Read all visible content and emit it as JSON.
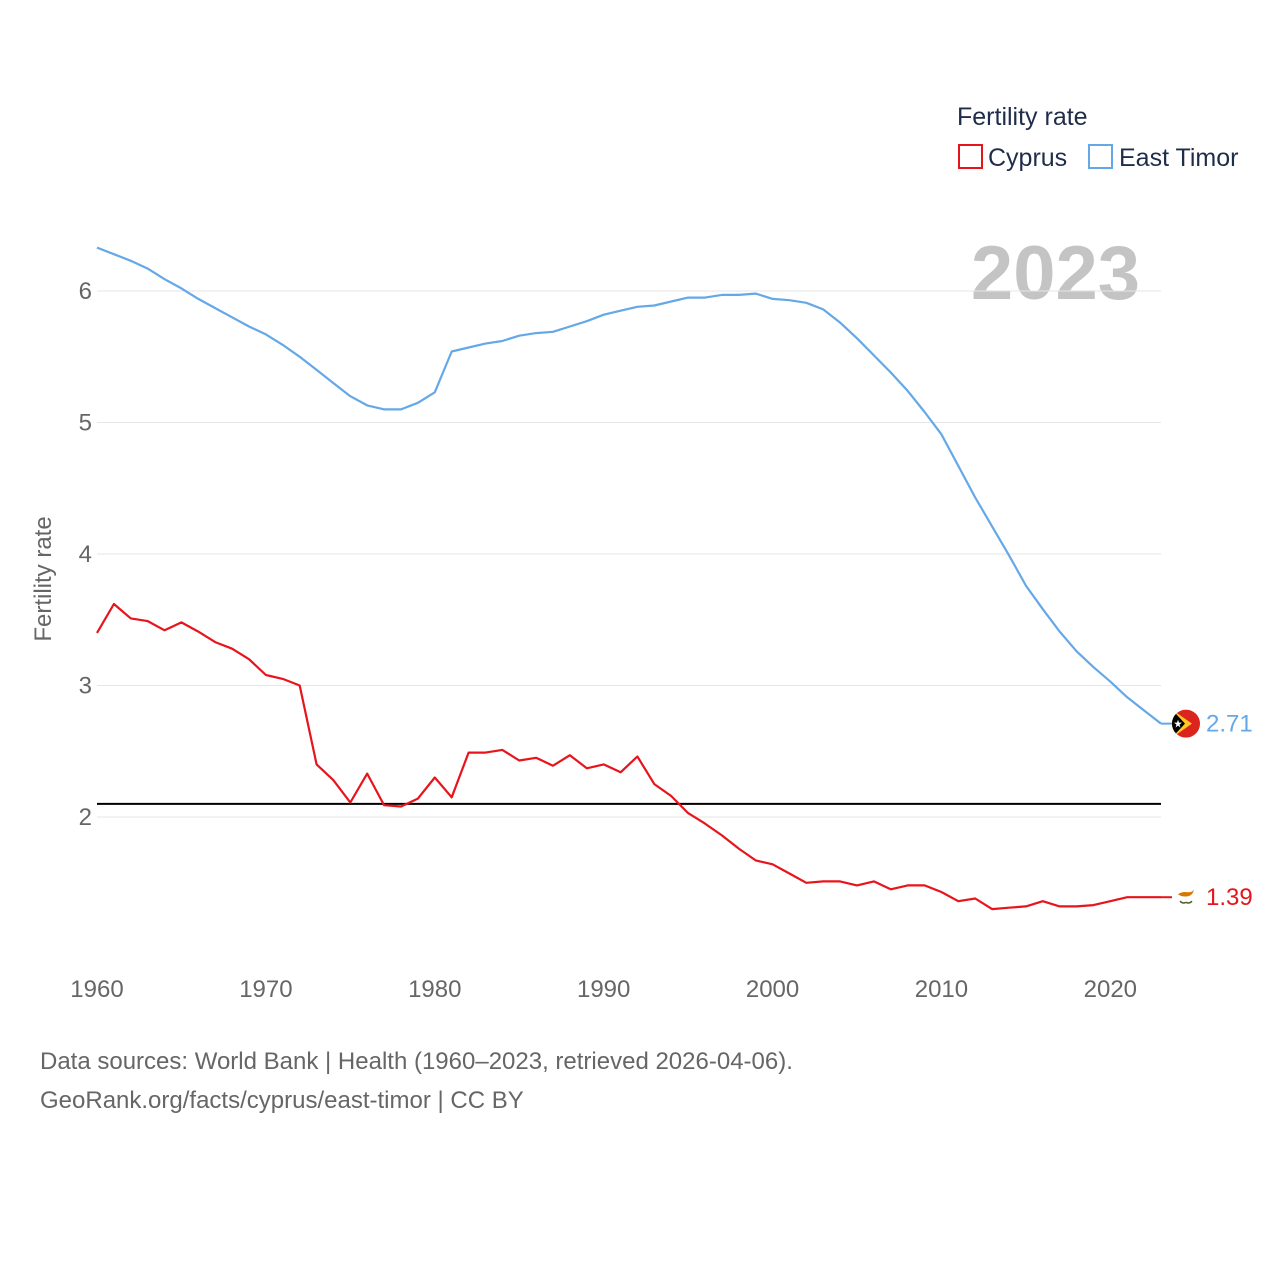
{
  "legend": {
    "title": "Fertility rate",
    "items": [
      {
        "label": "Cyprus",
        "color": "#e8141c"
      },
      {
        "label": "East Timor",
        "color": "#64a8e8"
      }
    ]
  },
  "year_label": "2023",
  "source": {
    "line1": "Data sources: World Bank | Health (1960–2023, retrieved 2026-04-06).",
    "line2": "GeoRank.org/facts/cyprus/east-timor | CC BY"
  },
  "colors": {
    "cyprus": "#e8141c",
    "east_timor": "#64a8e8",
    "grid": "#e6e6e6",
    "reference": "#000000"
  },
  "chart_data": {
    "type": "line",
    "title": "",
    "xlabel": "",
    "ylabel": "Fertility rate",
    "xlim": [
      1960,
      2023
    ],
    "ylim": [
      1.0,
      6.5
    ],
    "grid": true,
    "legend_position": "top-right",
    "x_ticks": [
      1960,
      1970,
      1980,
      1990,
      2000,
      2010,
      2020
    ],
    "x_tick_labels": [
      "1960",
      "1970",
      "1980",
      "1990",
      "2000",
      "2010",
      "2020"
    ],
    "y_ticks": [
      2,
      3,
      4,
      5,
      6
    ],
    "y_tick_labels": [
      "2",
      "3",
      "4",
      "5",
      "6"
    ],
    "reference_line": {
      "y": 2.1
    },
    "x": [
      1960,
      1961,
      1962,
      1963,
      1964,
      1965,
      1966,
      1967,
      1968,
      1969,
      1970,
      1971,
      1972,
      1973,
      1974,
      1975,
      1976,
      1977,
      1978,
      1979,
      1980,
      1981,
      1982,
      1983,
      1984,
      1985,
      1986,
      1987,
      1988,
      1989,
      1990,
      1991,
      1992,
      1993,
      1994,
      1995,
      1996,
      1997,
      1998,
      1999,
      2000,
      2001,
      2002,
      2003,
      2004,
      2005,
      2006,
      2007,
      2008,
      2009,
      2010,
      2011,
      2012,
      2013,
      2014,
      2015,
      2016,
      2017,
      2018,
      2019,
      2020,
      2021,
      2022,
      2023
    ],
    "series": [
      {
        "name": "Cyprus",
        "end_label": "1.39",
        "values": [
          3.4,
          3.62,
          3.51,
          3.49,
          3.42,
          3.48,
          3.41,
          3.33,
          3.28,
          3.2,
          3.08,
          3.05,
          3.0,
          2.4,
          2.28,
          2.11,
          2.33,
          2.09,
          2.08,
          2.14,
          2.3,
          2.15,
          2.49,
          2.49,
          2.51,
          2.43,
          2.45,
          2.39,
          2.47,
          2.37,
          2.4,
          2.34,
          2.46,
          2.25,
          2.16,
          2.03,
          1.95,
          1.86,
          1.76,
          1.67,
          1.64,
          1.57,
          1.5,
          1.51,
          1.51,
          1.48,
          1.51,
          1.45,
          1.48,
          1.48,
          1.43,
          1.36,
          1.38,
          1.3,
          1.31,
          1.32,
          1.36,
          1.32,
          1.32,
          1.33,
          1.36,
          1.39,
          1.39,
          1.39
        ]
      },
      {
        "name": "East Timor",
        "end_label": "2.71",
        "values": [
          6.33,
          6.28,
          6.23,
          6.17,
          6.09,
          6.02,
          5.94,
          5.87,
          5.8,
          5.73,
          5.67,
          5.59,
          5.5,
          5.4,
          5.3,
          5.2,
          5.13,
          5.1,
          5.1,
          5.15,
          5.23,
          5.54,
          5.57,
          5.6,
          5.62,
          5.66,
          5.68,
          5.69,
          5.73,
          5.77,
          5.82,
          5.85,
          5.88,
          5.89,
          5.92,
          5.95,
          5.95,
          5.97,
          5.97,
          5.98,
          5.94,
          5.93,
          5.91,
          5.86,
          5.76,
          5.64,
          5.51,
          5.38,
          5.24,
          5.08,
          4.91,
          4.67,
          4.43,
          4.21,
          3.99,
          3.76,
          3.58,
          3.41,
          3.26,
          3.14,
          3.03,
          2.91,
          2.81,
          2.71
        ]
      }
    ]
  }
}
